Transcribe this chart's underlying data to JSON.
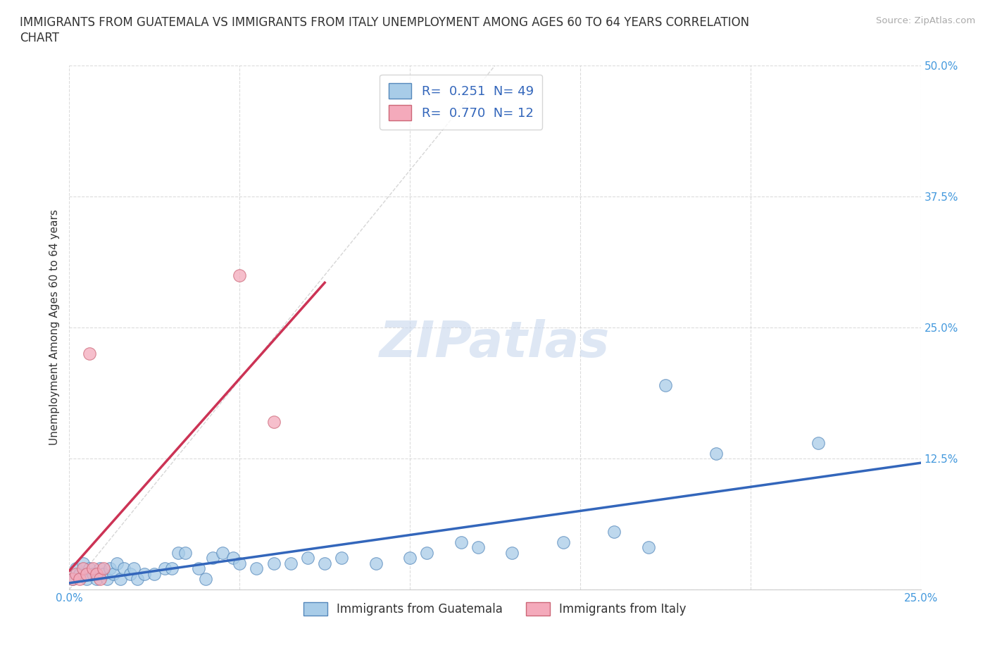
{
  "title_line1": "IMMIGRANTS FROM GUATEMALA VS IMMIGRANTS FROM ITALY UNEMPLOYMENT AMONG AGES 60 TO 64 YEARS CORRELATION",
  "title_line2": "CHART",
  "source": "Source: ZipAtlas.com",
  "ylabel": "Unemployment Among Ages 60 to 64 years",
  "xlim": [
    0.0,
    0.25
  ],
  "ylim": [
    0.0,
    0.5
  ],
  "ytick_positions": [
    0.0,
    0.125,
    0.25,
    0.375,
    0.5
  ],
  "xtick_positions": [
    0.0,
    0.05,
    0.1,
    0.15,
    0.2,
    0.25
  ],
  "guatemala_color": "#a8cce8",
  "guatemala_edge": "#5588bb",
  "italy_color": "#f4aabb",
  "italy_edge": "#cc6677",
  "trend_guatemala_color": "#3366bb",
  "trend_italy_color": "#cc3355",
  "R_guatemala": "0.251",
  "N_guatemala": "49",
  "R_italy": "0.770",
  "N_italy": "12",
  "legend_label_guatemala": "Immigrants from Guatemala",
  "legend_label_italy": "Immigrants from Italy",
  "guatemala_scatter_x": [
    0.001,
    0.002,
    0.003,
    0.004,
    0.005,
    0.006,
    0.007,
    0.008,
    0.009,
    0.01,
    0.011,
    0.012,
    0.013,
    0.014,
    0.015,
    0.016,
    0.018,
    0.019,
    0.02,
    0.022,
    0.025,
    0.028,
    0.03,
    0.032,
    0.034,
    0.038,
    0.04,
    0.042,
    0.045,
    0.048,
    0.05,
    0.055,
    0.06,
    0.065,
    0.07,
    0.075,
    0.08,
    0.09,
    0.1,
    0.105,
    0.115,
    0.12,
    0.13,
    0.145,
    0.16,
    0.17,
    0.175,
    0.19,
    0.22
  ],
  "guatemala_scatter_y": [
    0.01,
    0.02,
    0.015,
    0.025,
    0.01,
    0.02,
    0.015,
    0.01,
    0.02,
    0.015,
    0.01,
    0.02,
    0.015,
    0.025,
    0.01,
    0.02,
    0.015,
    0.02,
    0.01,
    0.015,
    0.015,
    0.02,
    0.02,
    0.035,
    0.035,
    0.02,
    0.01,
    0.03,
    0.035,
    0.03,
    0.025,
    0.02,
    0.025,
    0.025,
    0.03,
    0.025,
    0.03,
    0.025,
    0.03,
    0.035,
    0.045,
    0.04,
    0.035,
    0.045,
    0.055,
    0.04,
    0.195,
    0.13,
    0.14
  ],
  "italy_scatter_x": [
    0.001,
    0.002,
    0.003,
    0.004,
    0.005,
    0.006,
    0.007,
    0.008,
    0.009,
    0.01,
    0.05,
    0.06
  ],
  "italy_scatter_y": [
    0.01,
    0.015,
    0.01,
    0.02,
    0.015,
    0.225,
    0.02,
    0.015,
    0.01,
    0.02,
    0.3,
    0.16
  ],
  "watermark_text": "ZIPatlas",
  "background_color": "#ffffff",
  "grid_color": "#cccccc",
  "grid_linestyle": "--",
  "title_fontsize": 12,
  "label_fontsize": 11,
  "tick_fontsize": 11,
  "legend_fontsize": 12,
  "tick_color": "#4499dd",
  "text_color": "#333333",
  "source_color": "#aaaaaa"
}
